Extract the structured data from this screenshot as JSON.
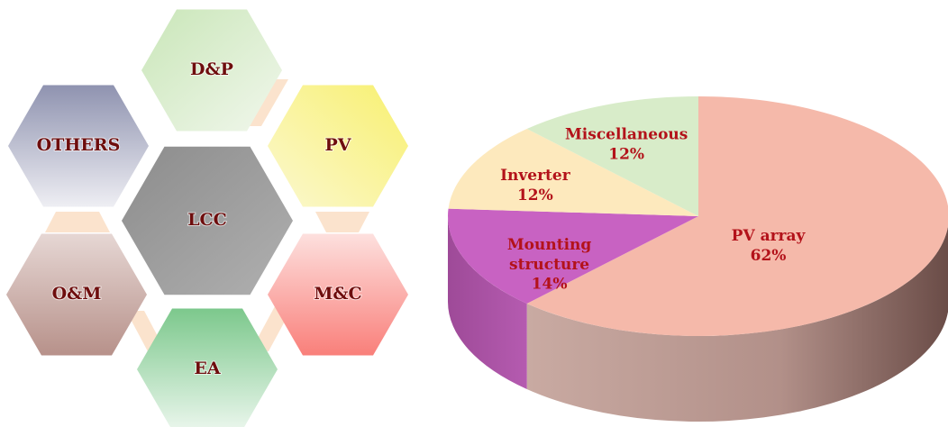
{
  "hexagons": [
    {
      "label": "D&P"
    },
    {
      "label": "OTHERS"
    },
    {
      "label": "PV"
    },
    {
      "label": "LCC"
    },
    {
      "label": "O&M"
    },
    {
      "label": "M&C"
    },
    {
      "label": "EA"
    }
  ],
  "chart_data": {
    "type": "pie",
    "categories": [
      "PV array",
      "Mounting structure",
      "Inverter",
      "Miscellaneous"
    ],
    "values": [
      62,
      14,
      12,
      12
    ],
    "value_labels": [
      "62%",
      "14%",
      "12%",
      "12%"
    ],
    "colors": [
      "#f5b9aa",
      "#c862c2",
      "#fde9bd",
      "#d8ecc9"
    ]
  }
}
